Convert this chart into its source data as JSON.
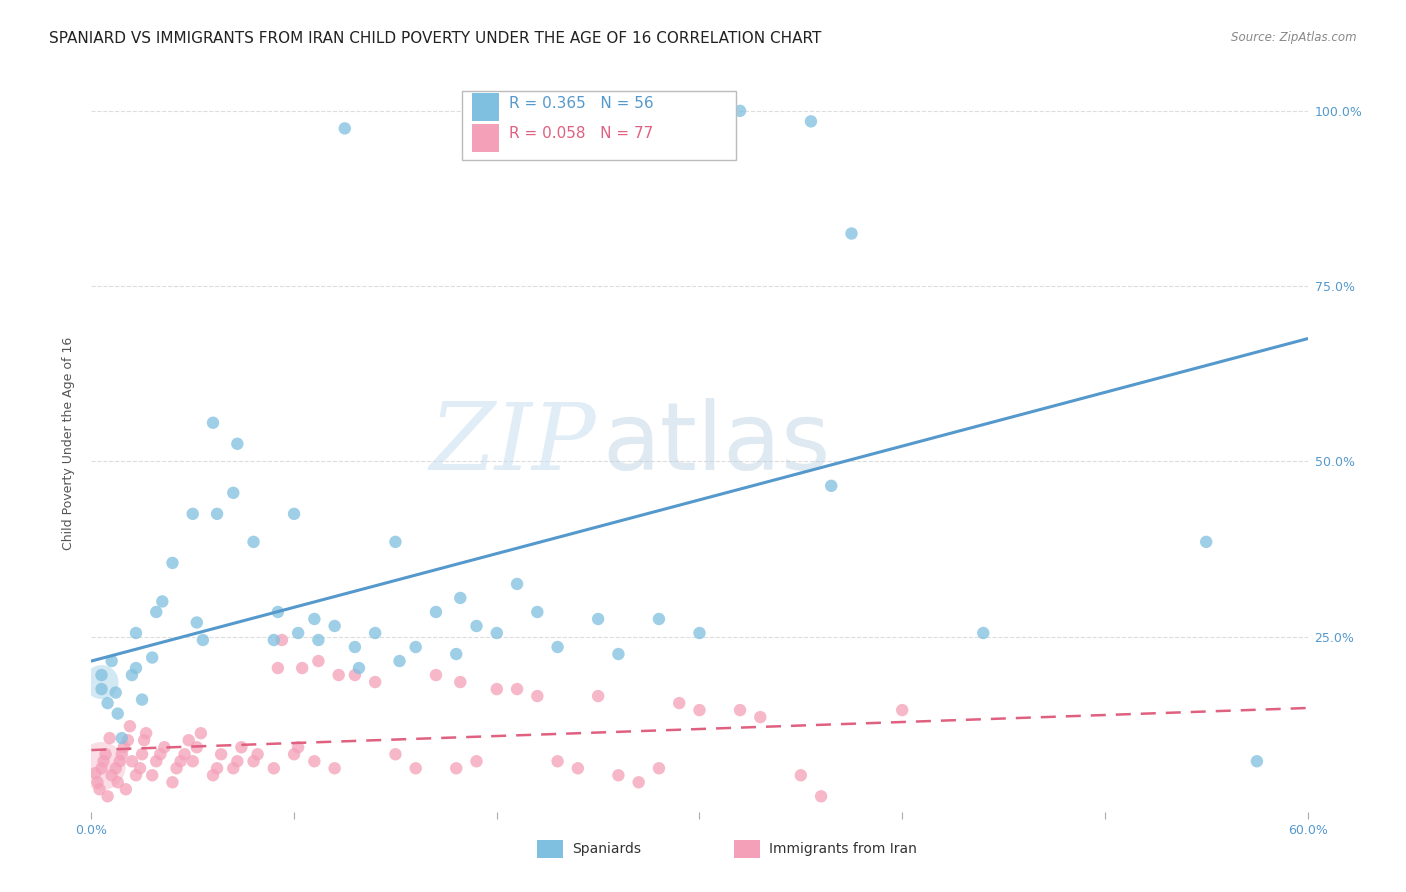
{
  "title": "SPANIARD VS IMMIGRANTS FROM IRAN CHILD POVERTY UNDER THE AGE OF 16 CORRELATION CHART",
  "source": "Source: ZipAtlas.com",
  "ylabel": "Child Poverty Under the Age of 16",
  "xlim": [
    0.0,
    0.6
  ],
  "ylim": [
    0.0,
    1.05
  ],
  "xticks": [
    0.0,
    0.1,
    0.2,
    0.3,
    0.4,
    0.5,
    0.6
  ],
  "xtick_labels": [
    "0.0%",
    "",
    "",
    "",
    "",
    "",
    "60.0%"
  ],
  "ytick_labels": [
    "",
    "25.0%",
    "50.0%",
    "75.0%",
    "100.0%"
  ],
  "yticks": [
    0.0,
    0.25,
    0.5,
    0.75,
    1.0
  ],
  "blue_line": {
    "x0": 0.0,
    "y0": 0.215,
    "x1": 0.6,
    "y1": 0.675
  },
  "pink_line": {
    "x0": 0.0,
    "y0": 0.088,
    "x1": 0.6,
    "y1": 0.148
  },
  "blue_dots": [
    [
      0.005,
      0.195
    ],
    [
      0.005,
      0.175
    ],
    [
      0.008,
      0.155
    ],
    [
      0.01,
      0.215
    ],
    [
      0.012,
      0.17
    ],
    [
      0.013,
      0.14
    ],
    [
      0.015,
      0.105
    ],
    [
      0.02,
      0.195
    ],
    [
      0.022,
      0.205
    ],
    [
      0.022,
      0.255
    ],
    [
      0.025,
      0.16
    ],
    [
      0.03,
      0.22
    ],
    [
      0.032,
      0.285
    ],
    [
      0.035,
      0.3
    ],
    [
      0.04,
      0.355
    ],
    [
      0.05,
      0.425
    ],
    [
      0.052,
      0.27
    ],
    [
      0.055,
      0.245
    ],
    [
      0.06,
      0.555
    ],
    [
      0.062,
      0.425
    ],
    [
      0.07,
      0.455
    ],
    [
      0.072,
      0.525
    ],
    [
      0.08,
      0.385
    ],
    [
      0.09,
      0.245
    ],
    [
      0.092,
      0.285
    ],
    [
      0.1,
      0.425
    ],
    [
      0.102,
      0.255
    ],
    [
      0.11,
      0.275
    ],
    [
      0.112,
      0.245
    ],
    [
      0.12,
      0.265
    ],
    [
      0.13,
      0.235
    ],
    [
      0.132,
      0.205
    ],
    [
      0.14,
      0.255
    ],
    [
      0.15,
      0.385
    ],
    [
      0.152,
      0.215
    ],
    [
      0.16,
      0.235
    ],
    [
      0.17,
      0.285
    ],
    [
      0.18,
      0.225
    ],
    [
      0.182,
      0.305
    ],
    [
      0.19,
      0.265
    ],
    [
      0.2,
      0.255
    ],
    [
      0.21,
      0.325
    ],
    [
      0.22,
      0.285
    ],
    [
      0.23,
      0.235
    ],
    [
      0.25,
      0.275
    ],
    [
      0.26,
      0.225
    ],
    [
      0.28,
      0.275
    ],
    [
      0.3,
      0.255
    ],
    [
      0.32,
      1.0
    ],
    [
      0.355,
      0.985
    ],
    [
      0.365,
      0.465
    ],
    [
      0.375,
      0.825
    ],
    [
      0.44,
      0.255
    ],
    [
      0.55,
      0.385
    ],
    [
      0.575,
      0.072
    ],
    [
      0.125,
      0.975
    ]
  ],
  "pink_dots": [
    [
      0.002,
      0.055
    ],
    [
      0.003,
      0.042
    ],
    [
      0.004,
      0.032
    ],
    [
      0.005,
      0.062
    ],
    [
      0.006,
      0.072
    ],
    [
      0.007,
      0.082
    ],
    [
      0.008,
      0.022
    ],
    [
      0.009,
      0.105
    ],
    [
      0.01,
      0.052
    ],
    [
      0.012,
      0.062
    ],
    [
      0.013,
      0.042
    ],
    [
      0.014,
      0.072
    ],
    [
      0.015,
      0.082
    ],
    [
      0.016,
      0.092
    ],
    [
      0.017,
      0.032
    ],
    [
      0.018,
      0.102
    ],
    [
      0.019,
      0.122
    ],
    [
      0.02,
      0.072
    ],
    [
      0.022,
      0.052
    ],
    [
      0.024,
      0.062
    ],
    [
      0.025,
      0.082
    ],
    [
      0.026,
      0.102
    ],
    [
      0.027,
      0.112
    ],
    [
      0.03,
      0.052
    ],
    [
      0.032,
      0.072
    ],
    [
      0.034,
      0.082
    ],
    [
      0.036,
      0.092
    ],
    [
      0.04,
      0.042
    ],
    [
      0.042,
      0.062
    ],
    [
      0.044,
      0.072
    ],
    [
      0.046,
      0.082
    ],
    [
      0.048,
      0.102
    ],
    [
      0.05,
      0.072
    ],
    [
      0.052,
      0.092
    ],
    [
      0.054,
      0.112
    ],
    [
      0.06,
      0.052
    ],
    [
      0.062,
      0.062
    ],
    [
      0.064,
      0.082
    ],
    [
      0.07,
      0.062
    ],
    [
      0.072,
      0.072
    ],
    [
      0.074,
      0.092
    ],
    [
      0.08,
      0.072
    ],
    [
      0.082,
      0.082
    ],
    [
      0.09,
      0.062
    ],
    [
      0.092,
      0.205
    ],
    [
      0.094,
      0.245
    ],
    [
      0.1,
      0.082
    ],
    [
      0.102,
      0.092
    ],
    [
      0.104,
      0.205
    ],
    [
      0.11,
      0.072
    ],
    [
      0.112,
      0.215
    ],
    [
      0.12,
      0.062
    ],
    [
      0.122,
      0.195
    ],
    [
      0.13,
      0.195
    ],
    [
      0.14,
      0.185
    ],
    [
      0.15,
      0.082
    ],
    [
      0.16,
      0.062
    ],
    [
      0.17,
      0.195
    ],
    [
      0.18,
      0.062
    ],
    [
      0.182,
      0.185
    ],
    [
      0.19,
      0.072
    ],
    [
      0.2,
      0.175
    ],
    [
      0.21,
      0.175
    ],
    [
      0.22,
      0.165
    ],
    [
      0.23,
      0.072
    ],
    [
      0.24,
      0.062
    ],
    [
      0.25,
      0.165
    ],
    [
      0.26,
      0.052
    ],
    [
      0.27,
      0.042
    ],
    [
      0.28,
      0.062
    ],
    [
      0.29,
      0.155
    ],
    [
      0.3,
      0.145
    ],
    [
      0.32,
      0.145
    ],
    [
      0.33,
      0.135
    ],
    [
      0.35,
      0.052
    ],
    [
      0.36,
      0.022
    ],
    [
      0.4,
      0.145
    ]
  ],
  "watermark_zip": "ZIP",
  "watermark_atlas": "atlas",
  "bg_color": "#ffffff",
  "plot_bg_color": "#ffffff",
  "grid_color": "#dddddd",
  "blue_color": "#7fbfdf",
  "pink_color": "#f4a0b8",
  "blue_line_color": "#5599cc",
  "pink_line_color": "#e06080",
  "title_fontsize": 11,
  "axis_label_fontsize": 9,
  "tick_fontsize": 9,
  "right_ytick_color": "#5599cc",
  "legend_R1": "R = 0.365",
  "legend_N1": "N = 56",
  "legend_R2": "R = 0.058",
  "legend_N2": "N = 77"
}
